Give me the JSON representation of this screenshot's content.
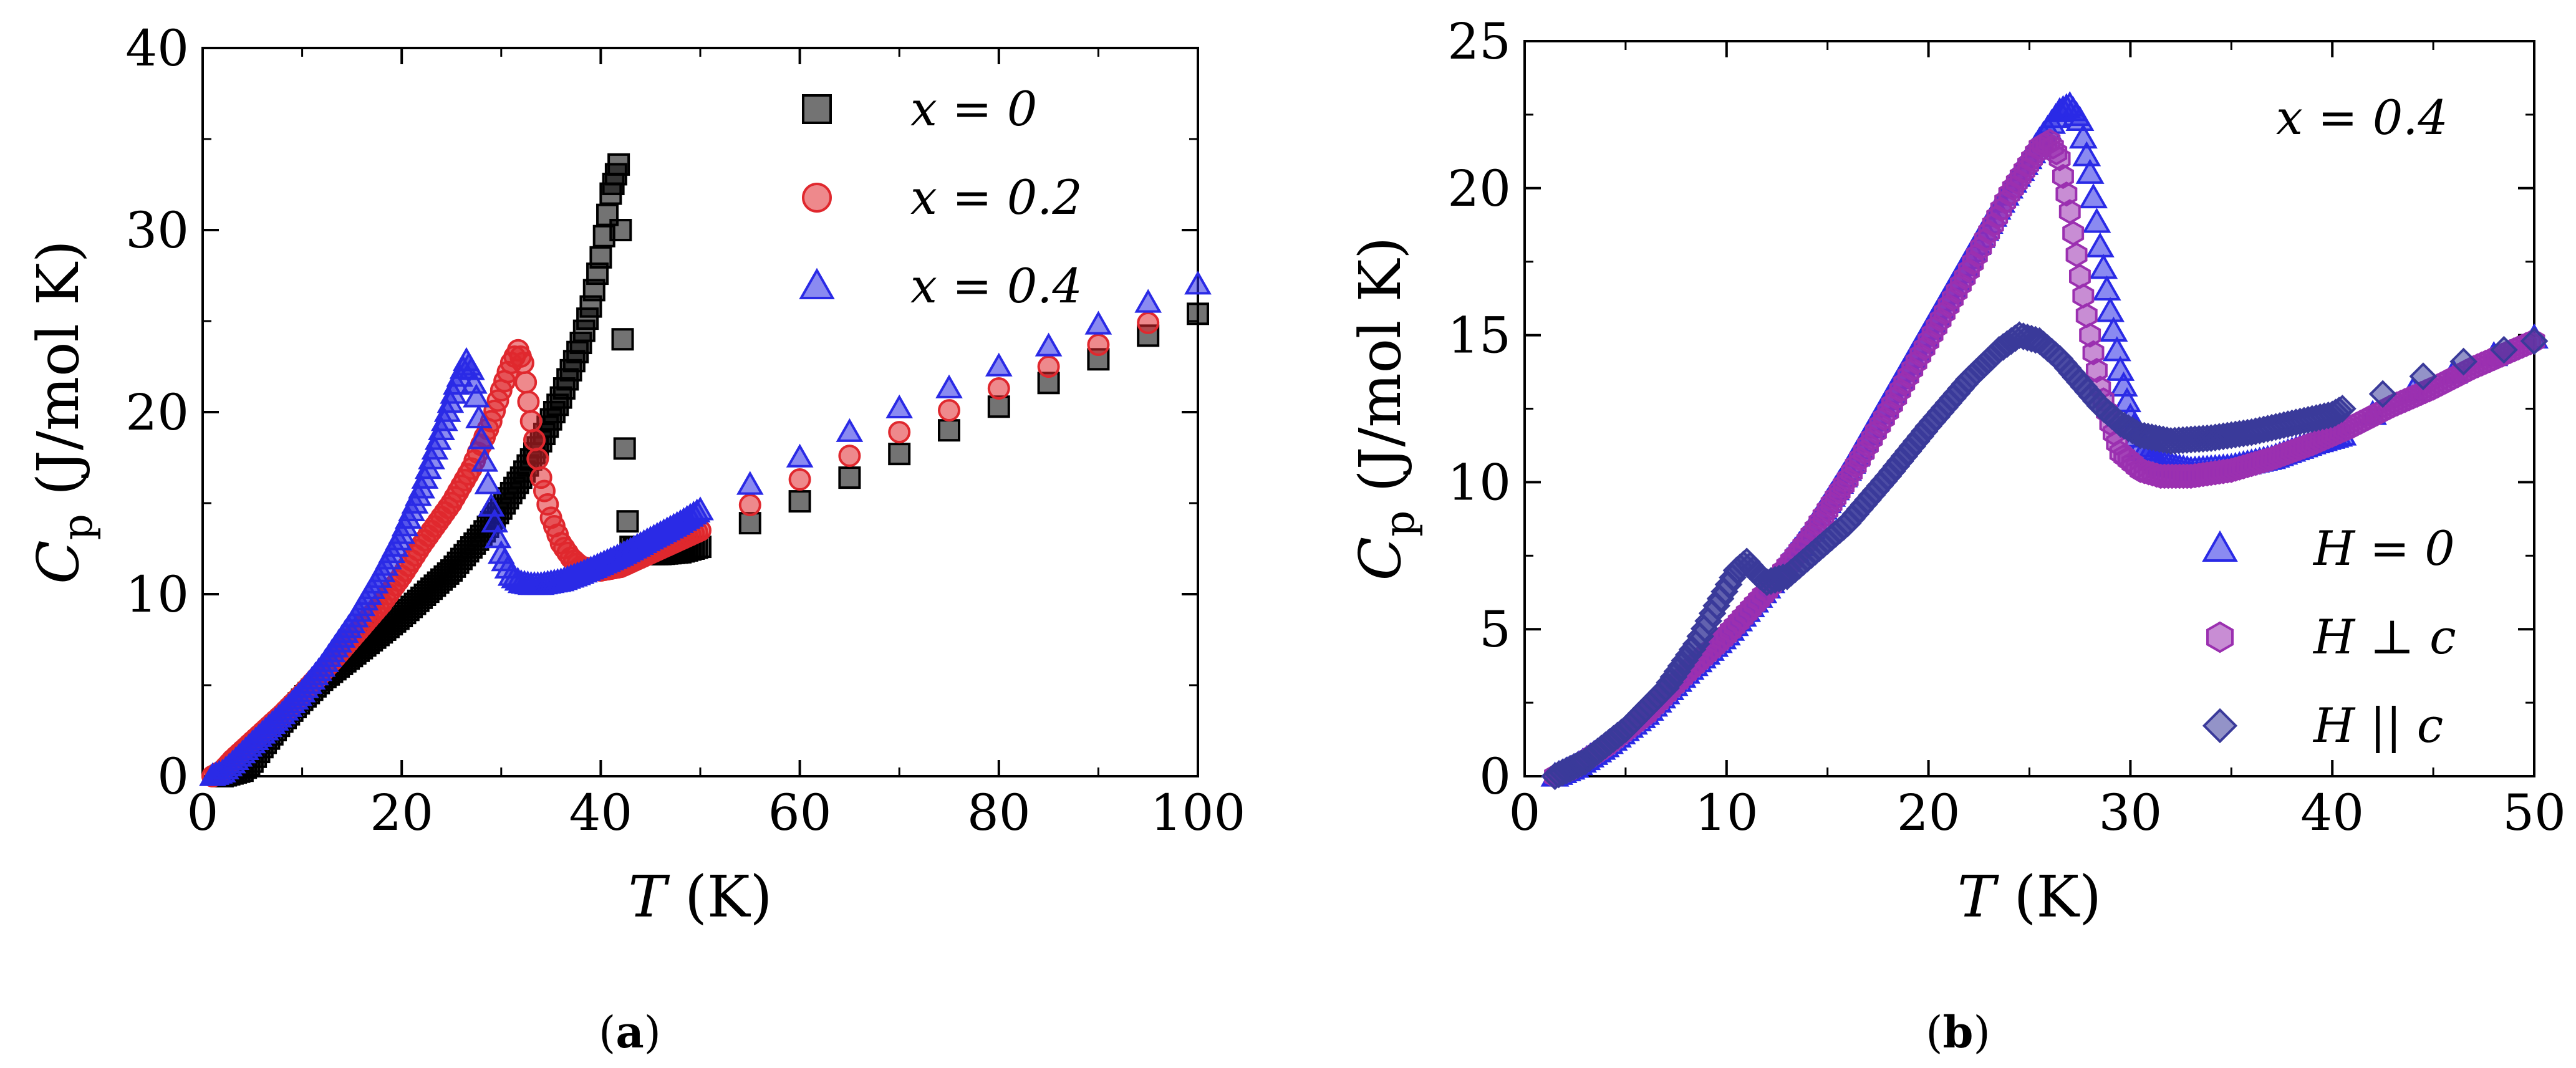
{
  "figure_captions": {
    "a": "a",
    "b": "b",
    "open_paren": "(",
    "close_paren": ")"
  },
  "chart_data": [
    {
      "id": "a",
      "type": "scatter",
      "title": "",
      "xlabel_var": "T",
      "xlabel_unit": " (K)",
      "ylabel_var": "C",
      "ylabel_sub": "p",
      "ylabel_unit": " (J/mol K)",
      "xlim": [
        0,
        100
      ],
      "ylim": [
        0,
        40
      ],
      "xticks": [
        0,
        20,
        40,
        60,
        80,
        100
      ],
      "yticks": [
        0,
        10,
        20,
        30,
        40
      ],
      "legend_position": "top-right",
      "series": [
        {
          "name": "x = 0",
          "color": "#000000",
          "marker": "square",
          "dense_points": [
            [
              2,
              0
            ],
            [
              4,
              0.3
            ],
            [
              5,
              0.8
            ],
            [
              6,
              1.6
            ],
            [
              8,
              3.0
            ],
            [
              10,
              4.2
            ],
            [
              12,
              5.3
            ],
            [
              15,
              6.6
            ],
            [
              18,
              7.9
            ],
            [
              20,
              8.8
            ],
            [
              22,
              9.8
            ],
            [
              25,
              11.3
            ],
            [
              28,
              13.2
            ],
            [
              30,
              14.7
            ],
            [
              32,
              16.4
            ],
            [
              34,
              18.4
            ],
            [
              36,
              20.8
            ],
            [
              38,
              23.8
            ],
            [
              39,
              25.8
            ],
            [
              40,
              28.5
            ],
            [
              41,
              32
            ],
            [
              41.8,
              33.6
            ],
            [
              42,
              30
            ],
            [
              42.2,
              24
            ],
            [
              42.4,
              18
            ],
            [
              42.7,
              14
            ],
            [
              43,
              12.6
            ],
            [
              44,
              12.2
            ],
            [
              46,
              12.2
            ],
            [
              48,
              12.3
            ],
            [
              50,
              12.6
            ]
          ],
          "sparse_points": [
            [
              55,
              13.9
            ],
            [
              60,
              15.1
            ],
            [
              65,
              16.4
            ],
            [
              70,
              17.7
            ],
            [
              75,
              19.0
            ],
            [
              80,
              20.3
            ],
            [
              85,
              21.6
            ],
            [
              90,
              22.9
            ],
            [
              95,
              24.2
            ],
            [
              100,
              25.4
            ]
          ]
        },
        {
          "name": "x = 0.2",
          "color": "#e0282e",
          "marker": "circle",
          "dense_points": [
            [
              1,
              0
            ],
            [
              2,
              0.3
            ],
            [
              3,
              0.9
            ],
            [
              5,
              1.9
            ],
            [
              8,
              3.4
            ],
            [
              10,
              4.5
            ],
            [
              12,
              5.7
            ],
            [
              15,
              7.6
            ],
            [
              18,
              9.5
            ],
            [
              20,
              11.0
            ],
            [
              22,
              12.7
            ],
            [
              25,
              15.0
            ],
            [
              27,
              16.9
            ],
            [
              29,
              19.5
            ],
            [
              30,
              21.2
            ],
            [
              31,
              22.7
            ],
            [
              31.7,
              23.4
            ],
            [
              32.2,
              22.7
            ],
            [
              33,
              19.5
            ],
            [
              34,
              16.4
            ],
            [
              35,
              14.2
            ],
            [
              36,
              12.8
            ],
            [
              37,
              12.0
            ],
            [
              38,
              11.5
            ],
            [
              40,
              11.3
            ],
            [
              42,
              11.5
            ],
            [
              44,
              12.0
            ],
            [
              46,
              12.5
            ],
            [
              48,
              13.0
            ],
            [
              50,
              13.5
            ]
          ],
          "sparse_points": [
            [
              55,
              14.9
            ],
            [
              60,
              16.3
            ],
            [
              65,
              17.6
            ],
            [
              70,
              18.9
            ],
            [
              75,
              20.1
            ],
            [
              80,
              21.3
            ],
            [
              85,
              22.5
            ],
            [
              90,
              23.7
            ],
            [
              95,
              24.9
            ]
          ]
        },
        {
          "name": "x = 0.4",
          "color": "#2a2ae6",
          "marker": "triangle",
          "dense_points": [
            [
              1,
              0
            ],
            [
              2,
              0.2
            ],
            [
              3,
              0.7
            ],
            [
              5,
              1.8
            ],
            [
              8,
              3.4
            ],
            [
              10,
              4.6
            ],
            [
              12,
              6.0
            ],
            [
              15,
              8.4
            ],
            [
              18,
              11.2
            ],
            [
              20,
              13.3
            ],
            [
              22,
              15.8
            ],
            [
              24,
              19.0
            ],
            [
              25.5,
              21.5
            ],
            [
              26.5,
              22.8
            ],
            [
              27,
              22.3
            ],
            [
              27.5,
              20.8
            ],
            [
              28,
              18.5
            ],
            [
              29,
              14.8
            ],
            [
              30,
              12.2
            ],
            [
              31,
              11.0
            ],
            [
              32,
              10.6
            ],
            [
              33,
              10.5
            ],
            [
              34,
              10.5
            ],
            [
              36,
              10.7
            ],
            [
              38,
              11.1
            ],
            [
              40,
              11.6
            ],
            [
              42,
              12.1
            ],
            [
              44,
              12.7
            ],
            [
              46,
              13.3
            ],
            [
              48,
              13.9
            ],
            [
              50,
              14.6
            ]
          ],
          "sparse_points": [
            [
              55,
              16.0
            ],
            [
              60,
              17.5
            ],
            [
              65,
              18.9
            ],
            [
              70,
              20.2
            ],
            [
              75,
              21.3
            ],
            [
              80,
              22.5
            ],
            [
              85,
              23.6
            ],
            [
              90,
              24.8
            ],
            [
              95,
              26.0
            ],
            [
              100,
              27.0
            ]
          ]
        }
      ]
    },
    {
      "id": "b",
      "type": "scatter",
      "title": "",
      "annotation": "x = 0.4",
      "xlabel_var": "T",
      "xlabel_unit": " (K)",
      "ylabel_var": "C",
      "ylabel_sub": "p",
      "ylabel_unit": " (J/mol K)",
      "xlim": [
        0,
        50
      ],
      "ylim": [
        0,
        25
      ],
      "xticks": [
        0,
        10,
        20,
        30,
        40,
        50
      ],
      "yticks": [
        0,
        5,
        10,
        15,
        20,
        25
      ],
      "legend_position": "bottom-right",
      "series": [
        {
          "name": "H = 0",
          "color": "#2a2ae6",
          "marker": "triangle",
          "dense_points": [
            [
              1.5,
              0
            ],
            [
              2.5,
              0.3
            ],
            [
              4,
              1.0
            ],
            [
              6,
              2.1
            ],
            [
              8,
              3.5
            ],
            [
              10,
              4.8
            ],
            [
              12,
              6.4
            ],
            [
              14,
              8.2
            ],
            [
              16,
              10.4
            ],
            [
              18,
              12.8
            ],
            [
              20,
              15.2
            ],
            [
              22,
              17.6
            ],
            [
              24,
              20.0
            ],
            [
              25.5,
              21.6
            ],
            [
              26.5,
              22.6
            ],
            [
              27,
              22.8
            ],
            [
              27.5,
              22.3
            ],
            [
              28,
              20.5
            ],
            [
              28.5,
              18.0
            ],
            [
              29,
              15.8
            ],
            [
              29.5,
              13.8
            ],
            [
              30,
              12.2
            ],
            [
              30.5,
              11.2
            ],
            [
              31.5,
              10.6
            ],
            [
              33,
              10.4
            ],
            [
              35,
              10.5
            ],
            [
              37,
              10.8
            ],
            [
              39,
              11.3
            ],
            [
              40.5,
              11.6
            ]
          ],
          "sparse_points": [
            [
              42,
              12.3
            ],
            [
              44,
              13.1
            ],
            [
              46,
              13.7
            ],
            [
              48,
              14.3
            ],
            [
              50,
              14.9
            ]
          ]
        },
        {
          "name": "H ⊥ c",
          "color": "#9b30b0",
          "marker": "hexagon",
          "dense_points": [
            [
              1.5,
              0
            ],
            [
              2.5,
              0.3
            ],
            [
              4,
              1.0
            ],
            [
              6,
              2.1
            ],
            [
              8,
              3.5
            ],
            [
              10,
              4.8
            ],
            [
              12,
              6.3
            ],
            [
              14,
              8.0
            ],
            [
              16,
              10.1
            ],
            [
              18,
              12.4
            ],
            [
              20,
              14.8
            ],
            [
              22,
              17.2
            ],
            [
              24,
              19.8
            ],
            [
              25.5,
              21.4
            ],
            [
              26,
              21.6
            ],
            [
              26.5,
              21.0
            ],
            [
              27,
              19.2
            ],
            [
              27.5,
              17.0
            ],
            [
              28,
              15.0
            ],
            [
              28.5,
              13.2
            ],
            [
              29,
              12.0
            ],
            [
              29.5,
              11.0
            ],
            [
              30.5,
              10.4
            ],
            [
              31.5,
              10.2
            ],
            [
              33,
              10.2
            ],
            [
              35,
              10.4
            ],
            [
              37,
              10.8
            ],
            [
              39,
              11.3
            ],
            [
              41,
              11.9
            ],
            [
              43,
              12.6
            ],
            [
              45,
              13.2
            ],
            [
              47,
              13.9
            ],
            [
              49,
              14.5
            ],
            [
              50,
              14.8
            ]
          ],
          "sparse_points": []
        },
        {
          "name": "H || c",
          "color": "#3a3a9a",
          "marker": "diamond",
          "dense_points": [
            [
              1.5,
              0
            ],
            [
              3,
              0.5
            ],
            [
              5,
              1.6
            ],
            [
              7,
              3.0
            ],
            [
              8.5,
              4.5
            ],
            [
              9.5,
              5.8
            ],
            [
              10.5,
              7.0
            ],
            [
              11,
              7.3
            ],
            [
              11.5,
              6.9
            ],
            [
              12,
              6.6
            ],
            [
              13,
              6.8
            ],
            [
              14,
              7.4
            ],
            [
              16,
              8.6
            ],
            [
              18,
              10.2
            ],
            [
              20,
              11.9
            ],
            [
              22,
              13.5
            ],
            [
              23.5,
              14.5
            ],
            [
              24.5,
              15.0
            ],
            [
              25.5,
              14.8
            ],
            [
              26.5,
              14.2
            ],
            [
              27.5,
              13.4
            ],
            [
              28.5,
              12.6
            ],
            [
              29.5,
              12.0
            ],
            [
              30.5,
              11.6
            ],
            [
              32,
              11.4
            ],
            [
              34,
              11.5
            ],
            [
              36,
              11.7
            ],
            [
              38,
              12.0
            ],
            [
              40,
              12.3
            ],
            [
              40.5,
              12.5
            ]
          ],
          "sparse_points": [
            [
              42.5,
              13.0
            ],
            [
              44.5,
              13.6
            ],
            [
              46.5,
              14.1
            ],
            [
              48.5,
              14.5
            ],
            [
              50,
              14.8
            ]
          ]
        }
      ]
    }
  ]
}
